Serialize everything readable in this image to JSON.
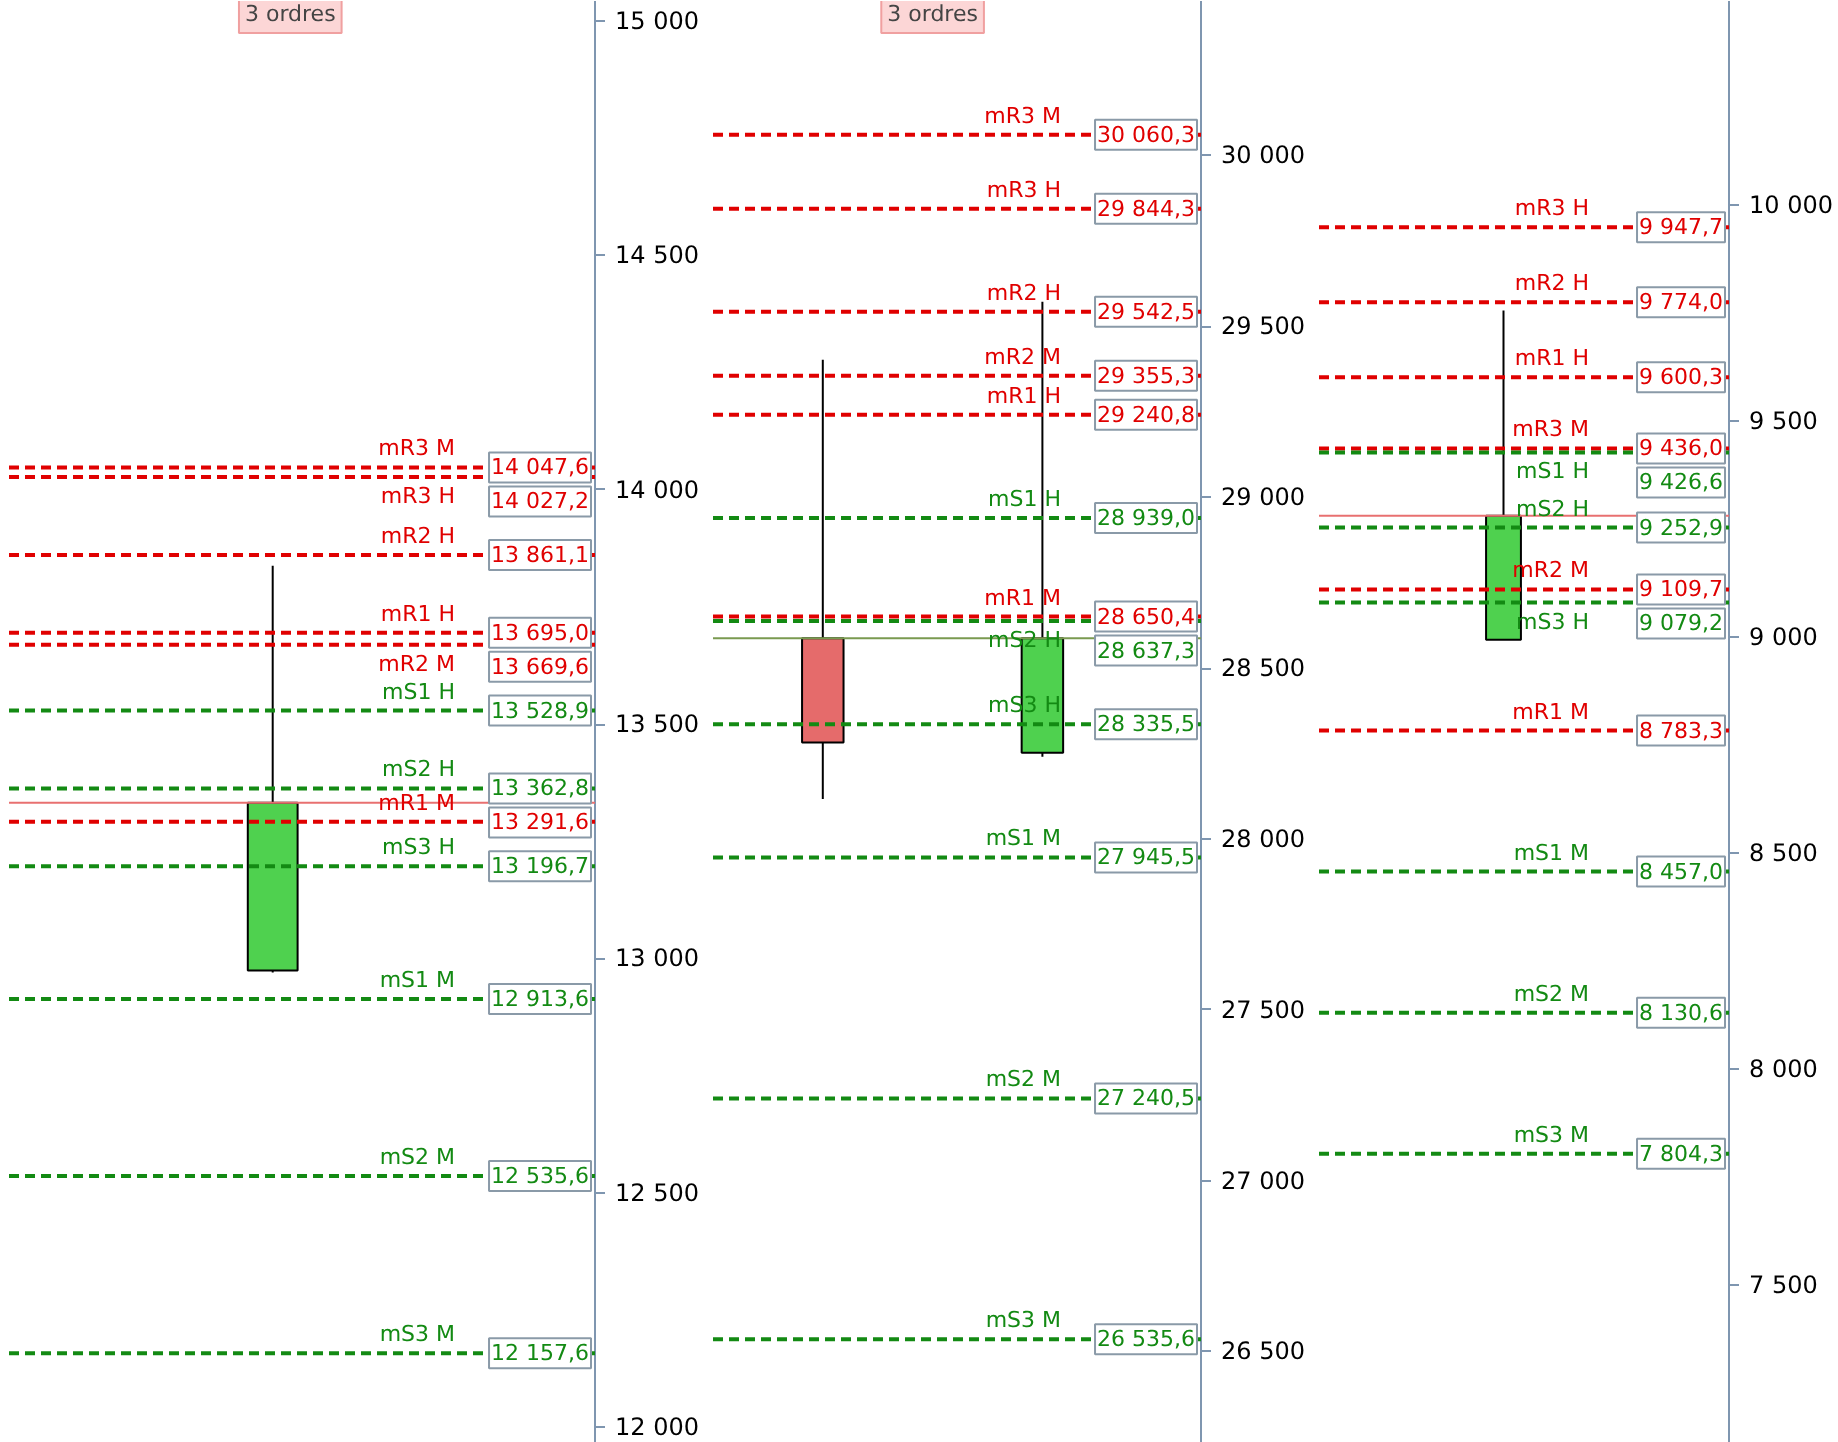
{
  "chart_data": [
    {
      "type": "candlestick",
      "categories": [
        null
      ],
      "ohlc": [
        [
          12974,
          13838,
          12970,
          13332
        ]
      ],
      "colors": [
        "#4fd14f"
      ],
      "ylim": [
        11966,
        15043
      ],
      "yticks": [
        {
          "value": 12000,
          "label": "12 000"
        },
        {
          "value": 12500,
          "label": "12 500"
        },
        {
          "value": 13000,
          "label": "13 000"
        },
        {
          "value": 13500,
          "label": "13 500"
        },
        {
          "value": 14000,
          "label": "14 000"
        },
        {
          "value": 14500,
          "label": "14 500"
        },
        {
          "value": 15000,
          "label": "15 000"
        }
      ],
      "tick_labels": "y",
      "grid": false,
      "annotations": [
        "3 ordres",
        {
          "text": "14 047,6",
          "y": 14047.6
        },
        {
          "text": "14 027,2",
          "y": 14027.2
        },
        {
          "text": "13 861,1",
          "y": 13861.1
        },
        {
          "text": "13 695,0",
          "y": 13695.0
        },
        {
          "text": "13 669,6",
          "y": 13669.6
        },
        {
          "text": "13 528,9",
          "y": 13528.9
        },
        {
          "text": "13 362,8",
          "y": 13362.8
        },
        {
          "text": "13 291,6",
          "y": 13291.6
        },
        {
          "text": "13 196,7",
          "y": 13196.7
        },
        {
          "text": "12 913,6",
          "y": 12913.6
        },
        {
          "text": "12 535,6",
          "y": 12535.6
        },
        {
          "text": "12 157,6",
          "y": 12157.6
        }
      ],
      "ref_lines": [
        {
          "axis": "y",
          "value": 13332,
          "color": "#e87070",
          "line_style": "solid"
        },
        {
          "axis": "y",
          "value": 14047.6,
          "label": "mR3 M",
          "color": "#e00000",
          "line_style": "dashed"
        },
        {
          "axis": "y",
          "value": 14027.2,
          "label": "mR3 H",
          "color": "#e00000",
          "line_style": "dashed"
        },
        {
          "axis": "y",
          "value": 13861.1,
          "label": "mR2 H",
          "color": "#e00000",
          "line_style": "dashed"
        },
        {
          "axis": "y",
          "value": 13695.0,
          "label": "mR1 H",
          "color": "#e00000",
          "line_style": "dashed"
        },
        {
          "axis": "y",
          "value": 13669.6,
          "label": "mR2 M",
          "color": "#e00000",
          "line_style": "dashed"
        },
        {
          "axis": "y",
          "value": 13528.9,
          "label": "mS1 H",
          "color": "#138a13",
          "line_style": "dashed"
        },
        {
          "axis": "y",
          "value": 13362.8,
          "label": "mS2 H",
          "color": "#138a13",
          "line_style": "dashed"
        },
        {
          "axis": "y",
          "value": 13291.6,
          "label": "mR1 M",
          "color": "#e00000",
          "line_style": "dashed"
        },
        {
          "axis": "y",
          "value": 13196.7,
          "label": "mS3 H",
          "color": "#138a13",
          "line_style": "dashed"
        },
        {
          "axis": "y",
          "value": 12913.6,
          "label": "mS1 M",
          "color": "#138a13",
          "line_style": "dashed"
        },
        {
          "axis": "y",
          "value": 12535.6,
          "label": "mS2 M",
          "color": "#138a13",
          "line_style": "dashed"
        },
        {
          "axis": "y",
          "value": 12157.6,
          "label": "mS3 M",
          "color": "#138a13",
          "line_style": "dashed"
        }
      ]
    },
    {
      "type": "candlestick",
      "categories": [
        null,
        null
      ],
      "ohlc": [
        [
          28587,
          29402,
          28117,
          28282
        ],
        [
          28252,
          29572,
          28240,
          28587
        ]
      ],
      "colors": [
        "#e56b6b",
        "#4fd14f"
      ],
      "ylim": [
        26232,
        30452
      ],
      "yticks": [
        {
          "value": 26500,
          "label": "26 500"
        },
        {
          "value": 27000,
          "label": "27 000"
        },
        {
          "value": 27500,
          "label": "27 500"
        },
        {
          "value": 28000,
          "label": "28 000"
        },
        {
          "value": 28500,
          "label": "28 500"
        },
        {
          "value": 29000,
          "label": "29 000"
        },
        {
          "value": 29500,
          "label": "29 500"
        },
        {
          "value": 30000,
          "label": "30 000"
        }
      ],
      "tick_labels": "y",
      "grid": false,
      "annotations": [
        "3 ordres",
        {
          "text": "30 060,3",
          "y": 30060.3
        },
        {
          "text": "29 844,3",
          "y": 29844.3
        },
        {
          "text": "29 542,5",
          "y": 29542.5
        },
        {
          "text": "29 355,3",
          "y": 29355.3
        },
        {
          "text": "29 240,8",
          "y": 29240.8
        },
        {
          "text": "28 939,0",
          "y": 28939.0
        },
        {
          "text": "28 650,4",
          "y": 28650.4
        },
        {
          "text": "28 637,3",
          "y": 28637.3
        },
        {
          "text": "28 335,5",
          "y": 28335.5
        },
        {
          "text": "27 945,5",
          "y": 27945.5
        },
        {
          "text": "27 240,5",
          "y": 27240.5
        },
        {
          "text": "26 535,6",
          "y": 26535.6
        }
      ],
      "ref_lines": [
        {
          "axis": "y",
          "value": 28587,
          "color": "#7a9a50",
          "line_style": "solid"
        },
        {
          "axis": "y",
          "value": 30060.3,
          "label": "mR3 M",
          "color": "#e00000",
          "line_style": "dashed"
        },
        {
          "axis": "y",
          "value": 29844.3,
          "label": "mR3 H",
          "color": "#e00000",
          "line_style": "dashed"
        },
        {
          "axis": "y",
          "value": 29542.5,
          "label": "mR2 H",
          "color": "#e00000",
          "line_style": "dashed"
        },
        {
          "axis": "y",
          "value": 29355.3,
          "label": "mR2 M",
          "color": "#e00000",
          "line_style": "dashed"
        },
        {
          "axis": "y",
          "value": 29240.8,
          "label": "mR1 H",
          "color": "#e00000",
          "line_style": "dashed"
        },
        {
          "axis": "y",
          "value": 28939.0,
          "label": "mS1 H",
          "color": "#138a13",
          "line_style": "dashed"
        },
        {
          "axis": "y",
          "value": 28650.4,
          "label": "mR1 M",
          "color": "#e00000",
          "line_style": "dashed"
        },
        {
          "axis": "y",
          "value": 28637.3,
          "label": "mS2 H",
          "color": "#138a13",
          "line_style": "dashed"
        },
        {
          "axis": "y",
          "value": 28335.5,
          "label": "mS3 H",
          "color": "#138a13",
          "line_style": "dashed"
        },
        {
          "axis": "y",
          "value": 27945.5,
          "label": "mS1 M",
          "color": "#138a13",
          "line_style": "dashed"
        },
        {
          "axis": "y",
          "value": 27240.5,
          "label": "mS2 M",
          "color": "#138a13",
          "line_style": "dashed"
        },
        {
          "axis": "y",
          "value": 26535.6,
          "label": "mS3 M",
          "color": "#138a13",
          "line_style": "dashed"
        }
      ]
    },
    {
      "type": "candlestick",
      "categories": [
        null
      ],
      "ohlc": [
        [
          8993,
          9755,
          8993,
          9280
        ]
      ],
      "colors": [
        "#4fd14f"
      ],
      "ylim": [
        7135,
        10471
      ],
      "yticks": [
        {
          "value": 7500,
          "label": "7 500"
        },
        {
          "value": 8000,
          "label": "8 000"
        },
        {
          "value": 8500,
          "label": "8 500"
        },
        {
          "value": 9000,
          "label": "9 000"
        },
        {
          "value": 9500,
          "label": "9 500"
        },
        {
          "value": 10000,
          "label": "10 000"
        }
      ],
      "tick_labels": "y",
      "grid": false,
      "annotations": [
        {
          "text": "9 947,7",
          "y": 9947.7
        },
        {
          "text": "9 774,0",
          "y": 9774.0
        },
        {
          "text": "9 600,3",
          "y": 9600.3
        },
        {
          "text": "9 436,0",
          "y": 9436.0
        },
        {
          "text": "9 426,6",
          "y": 9426.6
        },
        {
          "text": "9 252,9",
          "y": 9252.9
        },
        {
          "text": "9 109,7",
          "y": 9109.7
        },
        {
          "text": "9 079,2",
          "y": 9079.2
        },
        {
          "text": "8 783,3",
          "y": 8783.3
        },
        {
          "text": "8 457,0",
          "y": 8457.0
        },
        {
          "text": "8 130,6",
          "y": 8130.6
        },
        {
          "text": "7 804,3",
          "y": 7804.3
        }
      ],
      "ref_lines": [
        {
          "axis": "y",
          "value": 9280,
          "color": "#e87070",
          "line_style": "solid"
        },
        {
          "axis": "y",
          "value": 9947.7,
          "label": "mR3 H",
          "color": "#e00000",
          "line_style": "dashed"
        },
        {
          "axis": "y",
          "value": 9774.0,
          "label": "mR2 H",
          "color": "#e00000",
          "line_style": "dashed"
        },
        {
          "axis": "y",
          "value": 9600.3,
          "label": "mR1 H",
          "color": "#e00000",
          "line_style": "dashed"
        },
        {
          "axis": "y",
          "value": 9436.0,
          "label": "mR3 M",
          "color": "#e00000",
          "line_style": "dashed"
        },
        {
          "axis": "y",
          "value": 9426.6,
          "label": "mS1 H",
          "color": "#138a13",
          "line_style": "dashed"
        },
        {
          "axis": "y",
          "value": 9252.9,
          "label": "mS2 H",
          "color": "#138a13",
          "line_style": "dashed"
        },
        {
          "axis": "y",
          "value": 9109.7,
          "label": "mR2 M",
          "color": "#e00000",
          "line_style": "dashed"
        },
        {
          "axis": "y",
          "value": 9079.2,
          "label": "mS3 H",
          "color": "#138a13",
          "line_style": "dashed"
        },
        {
          "axis": "y",
          "value": 8783.3,
          "label": "mR1 M",
          "color": "#e00000",
          "line_style": "dashed"
        },
        {
          "axis": "y",
          "value": 8457.0,
          "label": "mS1 M",
          "color": "#138a13",
          "line_style": "dashed"
        },
        {
          "axis": "y",
          "value": 8130.6,
          "label": "mS2 M",
          "color": "#138a13",
          "line_style": "dashed"
        },
        {
          "axis": "y",
          "value": 7804.3,
          "label": "mS3 M",
          "color": "#138a13",
          "line_style": "dashed"
        }
      ]
    }
  ]
}
